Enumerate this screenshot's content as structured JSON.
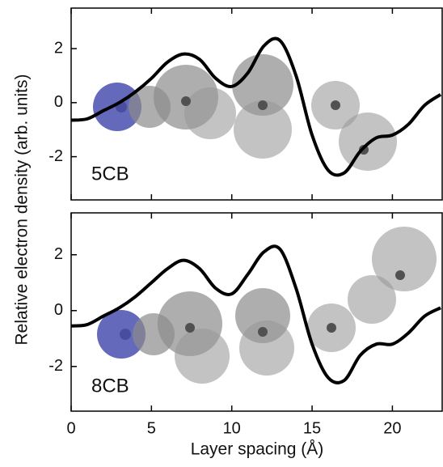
{
  "chart_data": [
    {
      "type": "line",
      "annotation": "5CB",
      "ylabel": "Relative electron density (arb. units)",
      "x": [
        0,
        1,
        2,
        3,
        4,
        5,
        6,
        7,
        8,
        9,
        10,
        11,
        12,
        13,
        14,
        15,
        16,
        17,
        18,
        19,
        20,
        21,
        22,
        23
      ],
      "series": [
        {
          "color": "#000000",
          "values": [
            -0.65,
            -0.6,
            -0.3,
            0,
            0.4,
            0.9,
            1.5,
            1.8,
            1.6,
            0.9,
            0.6,
            1.1,
            2.1,
            2.3,
            1.0,
            -1.2,
            -2.5,
            -2.6,
            -1.8,
            -1.3,
            -1.2,
            -0.8,
            -0.1,
            0.3
          ]
        }
      ],
      "xlim": [
        0,
        23.1
      ],
      "xticks": [
        0,
        5,
        10,
        15,
        20
      ],
      "ylim": [
        -3.6,
        3.5
      ],
      "yticks": [
        -2,
        0,
        2
      ]
    },
    {
      "type": "line",
      "annotation": "8CB",
      "xlabel": "Layer spacing (Å)",
      "x": [
        0,
        1,
        2,
        3,
        4,
        5,
        6,
        7,
        8,
        9,
        10,
        11,
        12,
        13,
        14,
        15,
        16,
        17,
        18,
        19,
        20,
        21,
        22,
        23
      ],
      "series": [
        {
          "color": "#000000",
          "values": [
            -0.55,
            -0.5,
            -0.2,
            0.1,
            0.5,
            1.0,
            1.5,
            1.8,
            1.5,
            0.8,
            0.6,
            1.3,
            2.1,
            2.2,
            0.8,
            -1.2,
            -2.4,
            -2.5,
            -1.6,
            -1.2,
            -1.2,
            -0.8,
            -0.2,
            0.1
          ]
        }
      ],
      "xlim": [
        0,
        23.1
      ],
      "xticks": [
        0,
        5,
        10,
        15,
        20
      ],
      "ylim": [
        -3.6,
        3.5
      ],
      "yticks": [
        -2,
        0,
        2
      ]
    }
  ]
}
